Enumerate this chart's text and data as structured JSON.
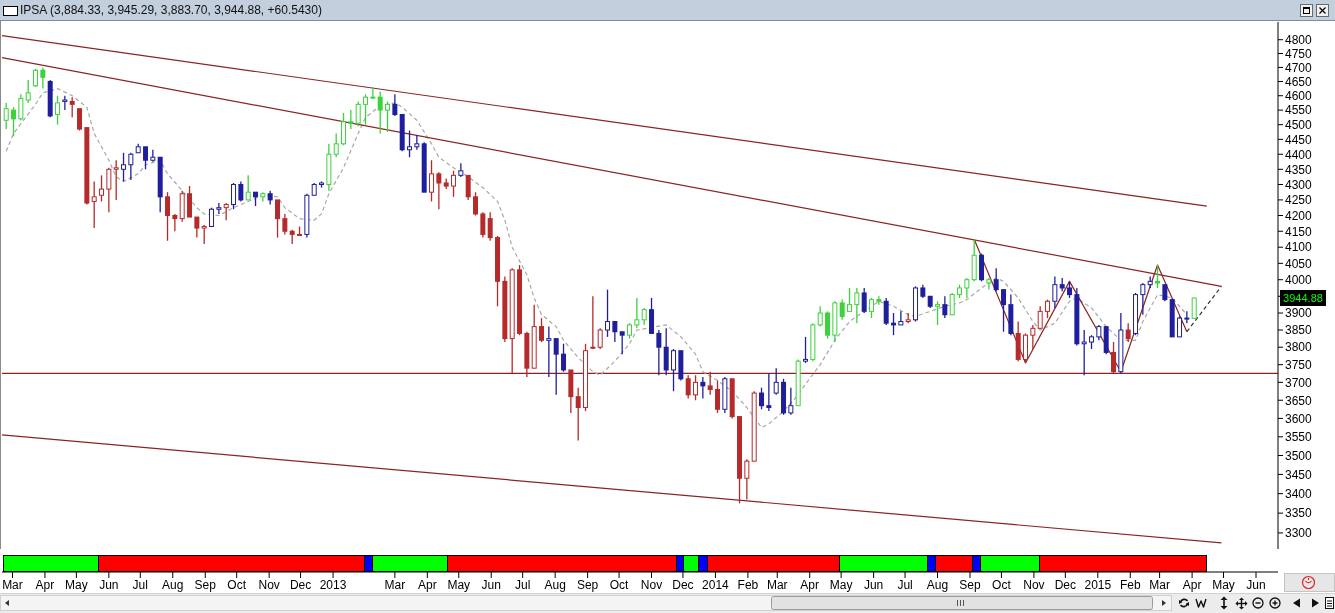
{
  "chart_data": {
    "type": "candlestick",
    "title": "IPSA (3,884.33, 3,945.29, 3,883.70, 3,944.88, +60.5430)",
    "x": [
      "2012-02-24",
      "2012-03-02",
      "2012-03-09",
      "2012-03-16",
      "2012-03-23",
      "2012-03-30",
      "2012-04-06",
      "2012-04-13",
      "2012-04-20",
      "2012-04-27",
      "2012-05-04",
      "2012-05-11",
      "2012-05-18",
      "2012-05-25",
      "2012-06-01",
      "2012-06-08",
      "2012-06-15",
      "2012-06-22",
      "2012-06-29",
      "2012-07-06",
      "2012-07-13",
      "2012-07-20",
      "2012-07-27",
      "2012-08-03",
      "2012-08-10",
      "2012-08-17",
      "2012-08-24",
      "2012-08-31",
      "2012-09-07",
      "2012-09-14",
      "2012-09-21",
      "2012-09-28",
      "2012-10-05",
      "2012-10-12",
      "2012-10-19",
      "2012-10-26",
      "2012-11-02",
      "2012-11-09",
      "2012-11-16",
      "2012-11-23",
      "2012-11-30",
      "2012-12-07",
      "2012-12-14",
      "2012-12-21",
      "2012-12-28",
      "2013-01-04",
      "2013-01-11",
      "2013-01-18",
      "2013-01-25",
      "2013-02-01",
      "2013-02-08",
      "2013-02-15",
      "2013-02-22",
      "2013-03-01",
      "2013-03-08",
      "2013-03-15",
      "2013-03-22",
      "2013-03-29",
      "2013-04-05",
      "2013-04-12",
      "2013-04-19",
      "2013-04-26",
      "2013-05-03",
      "2013-05-10",
      "2013-05-17",
      "2013-05-24",
      "2013-05-31",
      "2013-06-07",
      "2013-06-14",
      "2013-06-21",
      "2013-06-28",
      "2013-07-05",
      "2013-07-12",
      "2013-07-19",
      "2013-07-26",
      "2013-08-02",
      "2013-08-09",
      "2013-08-16",
      "2013-08-23",
      "2013-08-30",
      "2013-09-06",
      "2013-09-13",
      "2013-09-20",
      "2013-09-27",
      "2013-10-04",
      "2013-10-11",
      "2013-10-18",
      "2013-10-25",
      "2013-11-01",
      "2013-11-08",
      "2013-11-15",
      "2013-11-22",
      "2013-11-29",
      "2013-12-06",
      "2013-12-13",
      "2013-12-20",
      "2013-12-27",
      "2014-01-03",
      "2014-01-10",
      "2014-01-17",
      "2014-01-24",
      "2014-01-31",
      "2014-02-07",
      "2014-02-14",
      "2014-02-21",
      "2014-02-28",
      "2014-03-07",
      "2014-03-14",
      "2014-03-21",
      "2014-03-28",
      "2014-04-04",
      "2014-04-11",
      "2014-04-18",
      "2014-04-25",
      "2014-05-02",
      "2014-05-09",
      "2014-05-16",
      "2014-05-23",
      "2014-05-30",
      "2014-06-06",
      "2014-06-13",
      "2014-06-20",
      "2014-06-27",
      "2014-07-04",
      "2014-07-11",
      "2014-07-18",
      "2014-07-25",
      "2014-08-01",
      "2014-08-08",
      "2014-08-15",
      "2014-08-22",
      "2014-08-29",
      "2014-09-05",
      "2014-09-12",
      "2014-09-19",
      "2014-09-26",
      "2014-10-03",
      "2014-10-10",
      "2014-10-17",
      "2014-10-24",
      "2014-10-31",
      "2014-11-07",
      "2014-11-14",
      "2014-11-21",
      "2014-11-28",
      "2014-12-05",
      "2014-12-12",
      "2014-12-19",
      "2014-12-26",
      "2015-01-02",
      "2015-01-09",
      "2015-01-16",
      "2015-01-23",
      "2015-01-30",
      "2015-02-06",
      "2015-02-13",
      "2015-02-20",
      "2015-02-27",
      "2015-03-06",
      "2015-03-13",
      "2015-03-20",
      "2015-03-27",
      "2015-04-03"
    ],
    "ohlc": [
      [
        4515,
        4575,
        4485,
        4555
      ],
      [
        4550,
        4560,
        4460,
        4520
      ],
      [
        4520,
        4605,
        4515,
        4590
      ],
      [
        4585,
        4655,
        4575,
        4610
      ],
      [
        4635,
        4695,
        4630,
        4690
      ],
      [
        4690,
        4700,
        4625,
        4665
      ],
      [
        4650,
        4655,
        4525,
        4530
      ],
      [
        4535,
        4600,
        4500,
        4575
      ],
      [
        4580,
        4600,
        4550,
        4585
      ],
      [
        4580,
        4595,
        4525,
        4570
      ],
      [
        4555,
        4555,
        4480,
        4485
      ],
      [
        4490,
        4490,
        4235,
        4240
      ],
      [
        4245,
        4310,
        4160,
        4260
      ],
      [
        4265,
        4330,
        4245,
        4285
      ],
      [
        4285,
        4355,
        4210,
        4350
      ],
      [
        4350,
        4380,
        4250,
        4355
      ],
      [
        4350,
        4405,
        4310,
        4365
      ],
      [
        4365,
        4405,
        4315,
        4400
      ],
      [
        4405,
        4435,
        4405,
        4425
      ],
      [
        4425,
        4425,
        4350,
        4380
      ],
      [
        4380,
        4415,
        4375,
        4390
      ],
      [
        4390,
        4390,
        4210,
        4260
      ],
      [
        4260,
        4275,
        4120,
        4200
      ],
      [
        4200,
        4205,
        4150,
        4190
      ],
      [
        4190,
        4280,
        4180,
        4270
      ],
      [
        4270,
        4295,
        4195,
        4195
      ],
      [
        4195,
        4195,
        4130,
        4160
      ],
      [
        4160,
        4170,
        4110,
        4165
      ],
      [
        4165,
        4225,
        4165,
        4220
      ],
      [
        4220,
        4240,
        4205,
        4225
      ],
      [
        4225,
        4240,
        4185,
        4235
      ],
      [
        4235,
        4305,
        4220,
        4300
      ],
      [
        4300,
        4310,
        4245,
        4250
      ],
      [
        4250,
        4330,
        4250,
        4275
      ],
      [
        4275,
        4275,
        4230,
        4260
      ],
      [
        4260,
        4275,
        4245,
        4270
      ],
      [
        4270,
        4280,
        4235,
        4250
      ],
      [
        4250,
        4250,
        4130,
        4190
      ],
      [
        4190,
        4205,
        4140,
        4150
      ],
      [
        4150,
        4155,
        4110,
        4140
      ],
      [
        4140,
        4165,
        4135,
        4140
      ],
      [
        4140,
        4270,
        4130,
        4265
      ],
      [
        4265,
        4305,
        4265,
        4300
      ],
      [
        4300,
        4310,
        4290,
        4305
      ],
      [
        4300,
        4435,
        4280,
        4400
      ],
      [
        4400,
        4470,
        4390,
        4435
      ],
      [
        4435,
        4540,
        4430,
        4510
      ],
      [
        4510,
        4550,
        4485,
        4505
      ],
      [
        4505,
        4580,
        4495,
        4570
      ],
      [
        4570,
        4605,
        4500,
        4595
      ],
      [
        4595,
        4630,
        4590,
        4595
      ],
      [
        4595,
        4615,
        4470,
        4550
      ],
      [
        4550,
        4580,
        4475,
        4570
      ],
      [
        4570,
        4605,
        4530,
        4535
      ],
      [
        4535,
        4535,
        4410,
        4415
      ],
      [
        4415,
        4480,
        4390,
        4425
      ],
      [
        4425,
        4465,
        4415,
        4435
      ],
      [
        4435,
        4440,
        4275,
        4275
      ],
      [
        4275,
        4380,
        4245,
        4335
      ],
      [
        4335,
        4340,
        4220,
        4305
      ],
      [
        4305,
        4320,
        4285,
        4295
      ],
      [
        4295,
        4345,
        4260,
        4330
      ],
      [
        4330,
        4370,
        4325,
        4345
      ],
      [
        4330,
        4330,
        4250,
        4260
      ],
      [
        4260,
        4275,
        4200,
        4205
      ],
      [
        4205,
        4210,
        4130,
        4140
      ],
      [
        4190,
        4210,
        4120,
        4130
      ],
      [
        4130,
        4135,
        3920,
        3995
      ],
      [
        3995,
        4010,
        3815,
        3825
      ],
      [
        3825,
        4035,
        3725,
        4030
      ],
      [
        4030,
        4045,
        3835,
        3840
      ],
      [
        3840,
        3845,
        3715,
        3740
      ],
      [
        3740,
        3925,
        3740,
        3860
      ],
      [
        3860,
        3885,
        3815,
        3820
      ],
      [
        3820,
        3860,
        3715,
        3825
      ],
      [
        3825,
        3825,
        3665,
        3780
      ],
      [
        3780,
        3810,
        3730,
        3735
      ],
      [
        3735,
        3735,
        3615,
        3660
      ],
      [
        3660,
        3685,
        3540,
        3630
      ],
      [
        3630,
        3810,
        3620,
        3790
      ],
      [
        3800,
        3950,
        3795,
        3800
      ],
      [
        3800,
        3855,
        3795,
        3850
      ],
      [
        3850,
        3970,
        3830,
        3875
      ],
      [
        3875,
        3875,
        3815,
        3845
      ],
      [
        3845,
        3845,
        3780,
        3835
      ],
      [
        3835,
        3870,
        3825,
        3865
      ],
      [
        3865,
        3945,
        3855,
        3880
      ],
      [
        3880,
        3915,
        3865,
        3910
      ],
      [
        3910,
        3945,
        3840,
        3840
      ],
      [
        3840,
        3850,
        3720,
        3800
      ],
      [
        3800,
        3855,
        3720,
        3735
      ],
      [
        3735,
        3795,
        3675,
        3790
      ],
      [
        3790,
        3790,
        3705,
        3710
      ],
      [
        3710,
        3720,
        3655,
        3665
      ],
      [
        3665,
        3720,
        3650,
        3700
      ],
      [
        3700,
        3715,
        3655,
        3690
      ],
      [
        3690,
        3730,
        3665,
        3680
      ],
      [
        3680,
        3705,
        3615,
        3625
      ],
      [
        3625,
        3715,
        3615,
        3710
      ],
      [
        3710,
        3710,
        3600,
        3605
      ],
      [
        3605,
        3605,
        3375,
        3440
      ],
      [
        3440,
        3490,
        3385,
        3485
      ],
      [
        3485,
        3675,
        3485,
        3670
      ],
      [
        3670,
        3685,
        3625,
        3635
      ],
      [
        3635,
        3725,
        3620,
        3630
      ],
      [
        3670,
        3740,
        3665,
        3700
      ],
      [
        3700,
        3710,
        3610,
        3615
      ],
      [
        3615,
        3685,
        3610,
        3635
      ],
      [
        3635,
        3765,
        3635,
        3760
      ],
      [
        3760,
        3830,
        3755,
        3765
      ],
      [
        3765,
        3870,
        3760,
        3865
      ],
      [
        3865,
        3920,
        3860,
        3900
      ],
      [
        3900,
        3905,
        3825,
        3835
      ],
      [
        3835,
        3935,
        3815,
        3930
      ],
      [
        3930,
        3940,
        3880,
        3890
      ],
      [
        3905,
        3975,
        3905,
        3925
      ],
      [
        3925,
        3975,
        3870,
        3960
      ],
      [
        3960,
        3975,
        3900,
        3905
      ],
      [
        3905,
        3945,
        3885,
        3940
      ],
      [
        3940,
        3950,
        3925,
        3935
      ],
      [
        3935,
        3945,
        3865,
        3870
      ],
      [
        3870,
        3900,
        3835,
        3865
      ],
      [
        3865,
        3905,
        3865,
        3875
      ],
      [
        3875,
        3900,
        3870,
        3880
      ],
      [
        3880,
        3980,
        3875,
        3975
      ],
      [
        3975,
        3985,
        3945,
        3950
      ],
      [
        3950,
        3950,
        3915,
        3920
      ],
      [
        3920,
        3935,
        3865,
        3925
      ],
      [
        3925,
        3950,
        3885,
        3895
      ],
      [
        3895,
        3960,
        3895,
        3955
      ],
      [
        3955,
        3985,
        3945,
        3975
      ],
      [
        3975,
        4005,
        3945,
        4000
      ],
      [
        4000,
        4125,
        3995,
        4075
      ],
      [
        4075,
        4080,
        3995,
        4000
      ],
      [
        3990,
        4005,
        3970,
        4000
      ],
      [
        4000,
        4035,
        3965,
        3970
      ],
      [
        3970,
        3970,
        3845,
        3925
      ],
      [
        3925,
        3955,
        3835,
        3840
      ],
      [
        3840,
        3875,
        3760,
        3765
      ],
      [
        3765,
        3840,
        3755,
        3835
      ],
      [
        3835,
        3865,
        3795,
        3855
      ],
      [
        3855,
        3920,
        3855,
        3905
      ],
      [
        3905,
        3940,
        3885,
        3935
      ],
      [
        3935,
        4010,
        3915,
        3985
      ],
      [
        3985,
        4005,
        3965,
        3975
      ],
      [
        3975,
        3995,
        3945,
        3955
      ],
      [
        3955,
        3975,
        3805,
        3810
      ],
      [
        3810,
        3850,
        3720,
        3815
      ],
      [
        3815,
        3835,
        3795,
        3830
      ],
      [
        3830,
        3865,
        3820,
        3860
      ],
      [
        3860,
        3860,
        3780,
        3785
      ],
      [
        3785,
        3815,
        3725,
        3730
      ],
      [
        3730,
        3900,
        3725,
        3850
      ],
      [
        3850,
        3870,
        3815,
        3825
      ],
      [
        3840,
        3960,
        3835,
        3955
      ],
      [
        3955,
        3990,
        3895,
        3985
      ],
      [
        3985,
        4010,
        3975,
        3995
      ],
      [
        3995,
        4045,
        3975,
        3990
      ],
      [
        3985,
        3985,
        3935,
        3940
      ],
      [
        3940,
        3940,
        3830,
        3830
      ],
      [
        3830,
        3890,
        3830,
        3885
      ],
      [
        3885,
        3905,
        3870,
        3885
      ],
      [
        3884.33,
        3945.29,
        3883.7,
        3944.88
      ]
    ],
    "colors": [
      "#3cd23c",
      "#3cd23c",
      "#3cd23c",
      "#3cd23c",
      "#3cd23c",
      "#3cd23c",
      "#1f1f9e",
      "#3cd23c",
      "#1f1f9e",
      "#b52a2a",
      "#b52a2a",
      "#b52a2a",
      "#b52a2a",
      "#b52a2a",
      "#b52a2a",
      "#b52a2a",
      "#1f1f9e",
      "#1f1f9e",
      "#1f1f9e",
      "#1f1f9e",
      "#1f1f9e",
      "#1f1f9e",
      "#b52a2a",
      "#b52a2a",
      "#b52a2a",
      "#b52a2a",
      "#b52a2a",
      "#b52a2a",
      "#1f1f9e",
      "#1f1f9e",
      "#b52a2a",
      "#1f1f9e",
      "#1f1f9e",
      "#3cd23c",
      "#1f1f9e",
      "#3cd23c",
      "#1f1f9e",
      "#b52a2a",
      "#b52a2a",
      "#b52a2a",
      "#b52a2a",
      "#1f1f9e",
      "#1f1f9e",
      "#1f1f9e",
      "#3cd23c",
      "#3cd23c",
      "#3cd23c",
      "#3cd23c",
      "#3cd23c",
      "#3cd23c",
      "#3cd23c",
      "#3cd23c",
      "#3cd23c",
      "#1f1f9e",
      "#1f1f9e",
      "#1f1f9e",
      "#1f1f9e",
      "#1f1f9e",
      "#b52a2a",
      "#b52a2a",
      "#b52a2a",
      "#b52a2a",
      "#1f1f9e",
      "#b52a2a",
      "#b52a2a",
      "#b52a2a",
      "#b52a2a",
      "#b52a2a",
      "#b52a2a",
      "#b52a2a",
      "#b52a2a",
      "#b52a2a",
      "#b52a2a",
      "#b52a2a",
      "#1f1f9e",
      "#1f1f9e",
      "#1f1f9e",
      "#b52a2a",
      "#b52a2a",
      "#b52a2a",
      "#b52a2a",
      "#b52a2a",
      "#1f1f9e",
      "#1f1f9e",
      "#1f1f9e",
      "#3cd23c",
      "#3cd23c",
      "#3cd23c",
      "#1f1f9e",
      "#1f1f9e",
      "#1f1f9e",
      "#1f1f9e",
      "#1f1f9e",
      "#b52a2a",
      "#b52a2a",
      "#1f1f9e",
      "#b52a2a",
      "#b52a2a",
      "#1f1f9e",
      "#b52a2a",
      "#b52a2a",
      "#b52a2a",
      "#b52a2a",
      "#1f1f9e",
      "#1f1f9e",
      "#1f1f9e",
      "#1f1f9e",
      "#1f1f9e",
      "#3cd23c",
      "#1f1f9e",
      "#3cd23c",
      "#3cd23c",
      "#3cd23c",
      "#3cd23c",
      "#3cd23c",
      "#3cd23c",
      "#3cd23c",
      "#1f1f9e",
      "#3cd23c",
      "#3cd23c",
      "#1f1f9e",
      "#1f1f9e",
      "#1f1f9e",
      "#b52a2a",
      "#1f1f9e",
      "#1f1f9e",
      "#1f1f9e",
      "#3cd23c",
      "#1f1f9e",
      "#3cd23c",
      "#3cd23c",
      "#3cd23c",
      "#3cd23c",
      "#1f1f9e",
      "#3cd23c",
      "#1f1f9e",
      "#1f1f9e",
      "#1f1f9e",
      "#b52a2a",
      "#b52a2a",
      "#b52a2a",
      "#b52a2a",
      "#b52a2a",
      "#1f1f9e",
      "#1f1f9e",
      "#1f1f9e",
      "#1f1f9e",
      "#1f1f9e",
      "#1f1f9e",
      "#1f1f9e",
      "#1f1f9e",
      "#b52a2a",
      "#1f1f9e",
      "#b52a2a",
      "#1f1f9e",
      "#1f1f9e",
      "#1f1f9e",
      "#3cd23c",
      "#1f1f9e",
      "#1f1f9e",
      "#1f1f9e",
      "#1f1f9e",
      "#3cd23c"
    ],
    "series": [
      {
        "type": "line",
        "color": "#a8a8a8",
        "line_style": "dashed",
        "x": [
          "2012-02-24",
          "2012-03-02",
          "2012-03-23",
          "2012-03-30",
          "2012-04-13",
          "2012-04-27",
          "2012-05-11",
          "2012-05-18",
          "2012-06-01",
          "2012-06-08",
          "2012-06-15",
          "2012-06-29",
          "2012-07-06",
          "2012-07-20",
          "2012-07-27",
          "2012-08-10",
          "2012-08-24",
          "2012-08-31",
          "2012-09-14",
          "2012-09-28",
          "2012-10-12",
          "2012-10-26",
          "2012-11-09",
          "2012-11-16",
          "2012-11-30",
          "2012-12-14",
          "2012-12-21",
          "2012-12-28",
          "2013-01-11",
          "2013-01-25",
          "2013-02-01",
          "2013-02-15",
          "2013-03-01",
          "2013-03-08",
          "2013-03-22",
          "2013-04-05",
          "2013-04-12",
          "2013-04-26",
          "2013-05-10",
          "2013-05-24",
          "2013-06-07",
          "2013-06-14",
          "2013-06-21",
          "2013-07-05",
          "2013-07-12",
          "2013-07-19",
          "2013-08-02",
          "2013-08-09",
          "2013-08-23",
          "2013-09-06",
          "2013-09-13",
          "2013-09-27",
          "2013-10-11",
          "2013-10-18",
          "2013-11-15",
          "2013-11-29",
          "2013-12-13",
          "2013-12-20",
          "2014-01-03",
          "2014-01-17",
          "2014-01-31",
          "2014-02-14",
          "2014-02-21",
          "2014-03-07",
          "2014-03-21",
          "2014-03-28",
          "2014-04-11",
          "2014-04-25",
          "2014-05-09",
          "2014-05-23",
          "2014-06-06",
          "2014-06-20",
          "2014-07-04",
          "2014-07-11",
          "2014-07-25",
          "2014-08-08",
          "2014-08-22",
          "2014-08-29",
          "2014-09-12",
          "2014-09-26",
          "2014-10-03",
          "2014-10-17",
          "2014-10-31",
          "2014-11-07",
          "2014-11-21",
          "2014-12-05",
          "2014-12-12",
          "2014-12-26",
          "2015-01-09",
          "2015-01-23",
          "2015-02-06",
          "2015-02-13",
          "2015-02-27",
          "2015-03-13",
          "2015-03-27"
        ],
        "values": [
          4410,
          4470,
          4570,
          4610,
          4625,
          4600,
          4560,
          4470,
          4380,
          4325,
          4310,
          4335,
          4365,
          4380,
          4335,
          4280,
          4225,
          4205,
          4200,
          4225,
          4245,
          4265,
          4260,
          4225,
          4190,
          4185,
          4205,
          4270,
          4355,
          4470,
          4525,
          4565,
          4575,
          4560,
          4515,
          4435,
          4390,
          4355,
          4325,
          4290,
          4245,
          4185,
          4100,
          4015,
          3945,
          3895,
          3860,
          3820,
          3770,
          3730,
          3720,
          3760,
          3810,
          3850,
          3865,
          3830,
          3780,
          3730,
          3705,
          3675,
          3630,
          3575,
          3585,
          3620,
          3665,
          3695,
          3750,
          3820,
          3875,
          3905,
          3935,
          3920,
          3895,
          3890,
          3905,
          3920,
          3930,
          3940,
          3975,
          4005,
          3995,
          3945,
          3875,
          3850,
          3870,
          3935,
          3945,
          3915,
          3860,
          3820,
          3820,
          3875,
          3955,
          3945,
          3895
        ]
      },
      {
        "type": "line",
        "color": "#8b2323",
        "x": [
          "2012-02-20",
          "2015-04-15"
        ],
        "values": [
          4815,
          4230
        ]
      },
      {
        "type": "line",
        "color": "#8b2323",
        "x": [
          "2012-02-20",
          "2015-04-29"
        ],
        "values": [
          4735,
          3980
        ]
      },
      {
        "type": "line",
        "color": "#8b2323",
        "x": [
          "2012-02-20",
          "2015-04-29"
        ],
        "values": [
          3555,
          3275
        ]
      },
      {
        "type": "line",
        "color": "#8b2323",
        "x": [
          "2014-09-05",
          "2014-10-24",
          "2014-12-05",
          "2015-01-23",
          "2015-02-27",
          "2015-03-27"
        ],
        "values": [
          4125,
          3755,
          3995,
          3730,
          4045,
          3845
        ]
      },
      {
        "type": "line",
        "color": "#333333",
        "line_style": "dashed",
        "x": [
          "2015-03-27",
          "2015-04-29"
        ],
        "values": [
          3845,
          3980
        ]
      }
    ],
    "ref_lines": [
      {
        "axis": "y",
        "value": 3725,
        "color": "#8b2323"
      }
    ],
    "annotations": [
      "3944.88"
    ],
    "xlim": [
      "2012-02-20",
      "2015-06-22"
    ],
    "ylim": [
      3260,
      4865
    ],
    "xticks": [
      {
        "value": "2012-03-01",
        "label": "Mar"
      },
      {
        "value": "2012-04-01",
        "label": "Apr"
      },
      {
        "value": "2012-05-01",
        "label": "May"
      },
      {
        "value": "2012-06-01",
        "label": "Jun"
      },
      {
        "value": "2012-07-01",
        "label": "Jul"
      },
      {
        "value": "2012-08-01",
        "label": "Aug"
      },
      {
        "value": "2012-09-01",
        "label": "Sep"
      },
      {
        "value": "2012-10-01",
        "label": "Oct"
      },
      {
        "value": "2012-11-01",
        "label": "Nov"
      },
      {
        "value": "2012-12-01",
        "label": "Dec"
      },
      {
        "value": "2013-01-01",
        "label": "2013"
      },
      {
        "value": "2013-03-01",
        "label": "Mar"
      },
      {
        "value": "2013-04-01",
        "label": "Apr"
      },
      {
        "value": "2013-05-01",
        "label": "May"
      },
      {
        "value": "2013-06-01",
        "label": "Jun"
      },
      {
        "value": "2013-07-01",
        "label": "Jul"
      },
      {
        "value": "2013-08-01",
        "label": "Aug"
      },
      {
        "value": "2013-09-01",
        "label": "Sep"
      },
      {
        "value": "2013-10-01",
        "label": "Oct"
      },
      {
        "value": "2013-11-01",
        "label": "Nov"
      },
      {
        "value": "2013-12-01",
        "label": "Dec"
      },
      {
        "value": "2014-01-01",
        "label": "2014"
      },
      {
        "value": "2014-02-01",
        "label": "Feb"
      },
      {
        "value": "2014-03-01",
        "label": "Mar"
      },
      {
        "value": "2014-04-01",
        "label": "Apr"
      },
      {
        "value": "2014-05-01",
        "label": "May"
      },
      {
        "value": "2014-06-01",
        "label": "Jun"
      },
      {
        "value": "2014-07-01",
        "label": "Jul"
      },
      {
        "value": "2014-08-01",
        "label": "Aug"
      },
      {
        "value": "2014-09-01",
        "label": "Sep"
      },
      {
        "value": "2014-10-01",
        "label": "Oct"
      },
      {
        "value": "2014-11-01",
        "label": "Nov"
      },
      {
        "value": "2014-12-01",
        "label": "Dec"
      },
      {
        "value": "2015-01-01",
        "label": "2015"
      },
      {
        "value": "2015-02-01",
        "label": "Feb"
      },
      {
        "value": "2015-03-01",
        "label": "Mar"
      },
      {
        "value": "2015-04-01",
        "label": "Apr"
      },
      {
        "value": "2015-05-01",
        "label": "May"
      },
      {
        "value": "2015-06-01",
        "label": "Jun"
      }
    ],
    "yticks": [
      3300,
      3350,
      3400,
      3450,
      3500,
      3550,
      3600,
      3650,
      3700,
      3750,
      3800,
      3850,
      3900,
      {
        "value": 3950,
        "label": null
      },
      4000,
      4050,
      4100,
      4150,
      4200,
      4250,
      4300,
      4350,
      4400,
      4450,
      4500,
      4550,
      4600,
      4650,
      4700,
      4750,
      4800
    ],
    "log": true
  }
}
